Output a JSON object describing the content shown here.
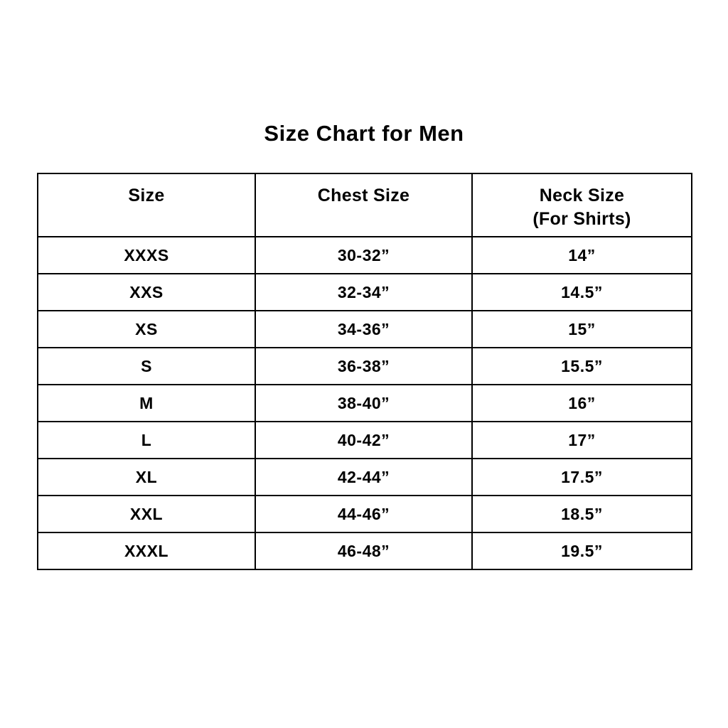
{
  "title": "Size Chart for Men",
  "table": {
    "headers": {
      "size": "Size",
      "chest": "Chest Size",
      "neck_line1": "Neck Size",
      "neck_line2": "(For Shirts)"
    },
    "rows": [
      {
        "size": "XXXS",
        "chest": "30-32”",
        "neck": "14”"
      },
      {
        "size": "XXS",
        "chest": "32-34”",
        "neck": "14.5”"
      },
      {
        "size": "XS",
        "chest": "34-36”",
        "neck": "15”"
      },
      {
        "size": "S",
        "chest": "36-38”",
        "neck": "15.5”"
      },
      {
        "size": "M",
        "chest": "38-40”",
        "neck": "16”"
      },
      {
        "size": "L",
        "chest": "40-42”",
        "neck": "17”"
      },
      {
        "size": "XL",
        "chest": "42-44”",
        "neck": "17.5”"
      },
      {
        "size": "XXL",
        "chest": "44-46”",
        "neck": "18.5”"
      },
      {
        "size": "XXXL",
        "chest": "46-48”",
        "neck": "19.5”"
      }
    ]
  },
  "colors": {
    "background": "#ffffff",
    "text": "#000000",
    "border": "#000000"
  },
  "chart_data": {
    "type": "table",
    "title": "Size Chart for Men",
    "columns": [
      "Size",
      "Chest Size",
      "Neck Size (For Shirts)"
    ],
    "rows": [
      [
        "XXXS",
        "30-32”",
        "14”"
      ],
      [
        "XXS",
        "32-34”",
        "14.5”"
      ],
      [
        "XS",
        "34-36”",
        "15”"
      ],
      [
        "S",
        "36-38”",
        "15.5”"
      ],
      [
        "M",
        "38-40”",
        "16”"
      ],
      [
        "L",
        "40-42”",
        "17”"
      ],
      [
        "XL",
        "42-44”",
        "17.5”"
      ],
      [
        "XXL",
        "44-46”",
        "18.5”"
      ],
      [
        "XXXL",
        "46-48”",
        "19.5”"
      ]
    ]
  }
}
